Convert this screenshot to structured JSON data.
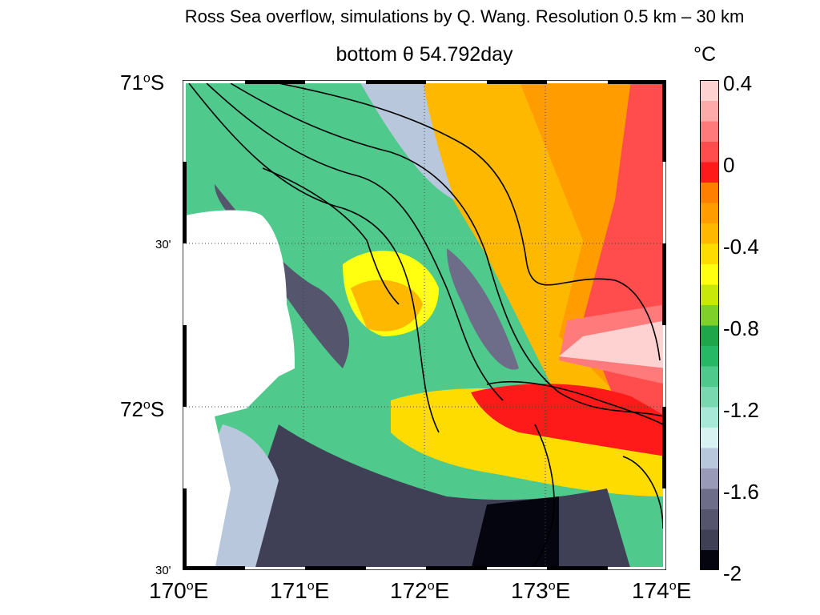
{
  "suptitle": "Ross Sea overflow, simulations by Q. Wang. Resolution 0.5 km – 30 km",
  "plot_title": "bottom θ 54.792day",
  "colorbar": {
    "unit": "°C",
    "ticks": [
      "0.4",
      "0",
      "-0.4",
      "-0.8",
      "-1.2",
      "-1.6",
      "-2"
    ],
    "range": [
      -2,
      0.4
    ],
    "colors": [
      "#05050f",
      "#3f3f56",
      "#55556e",
      "#6d6d8a",
      "#9999b8",
      "#b8c7dc",
      "#d8f2f2",
      "#a8e8d8",
      "#7ad8b0",
      "#4fc98c",
      "#26b864",
      "#1fa64a",
      "#7fd12a",
      "#c8e80a",
      "#ffff10",
      "#ffdc00",
      "#ffb800",
      "#ff9c00",
      "#ff7f00",
      "#ff1a1a",
      "#ff4d4d",
      "#ff7a7a",
      "#ffaaaa",
      "#ffd2d2"
    ]
  },
  "axes": {
    "lat_labels": [
      {
        "deg": "71",
        "suffix": "S"
      },
      {
        "text": "30'"
      },
      {
        "deg": "72",
        "suffix": "S"
      },
      {
        "text": "30'"
      }
    ],
    "lon_labels": [
      {
        "deg": "170",
        "suffix": "E"
      },
      {
        "deg": "171",
        "suffix": "E"
      },
      {
        "deg": "172",
        "suffix": "E"
      },
      {
        "deg": "173",
        "suffix": "E"
      },
      {
        "deg": "174",
        "suffix": "E"
      }
    ]
  }
}
